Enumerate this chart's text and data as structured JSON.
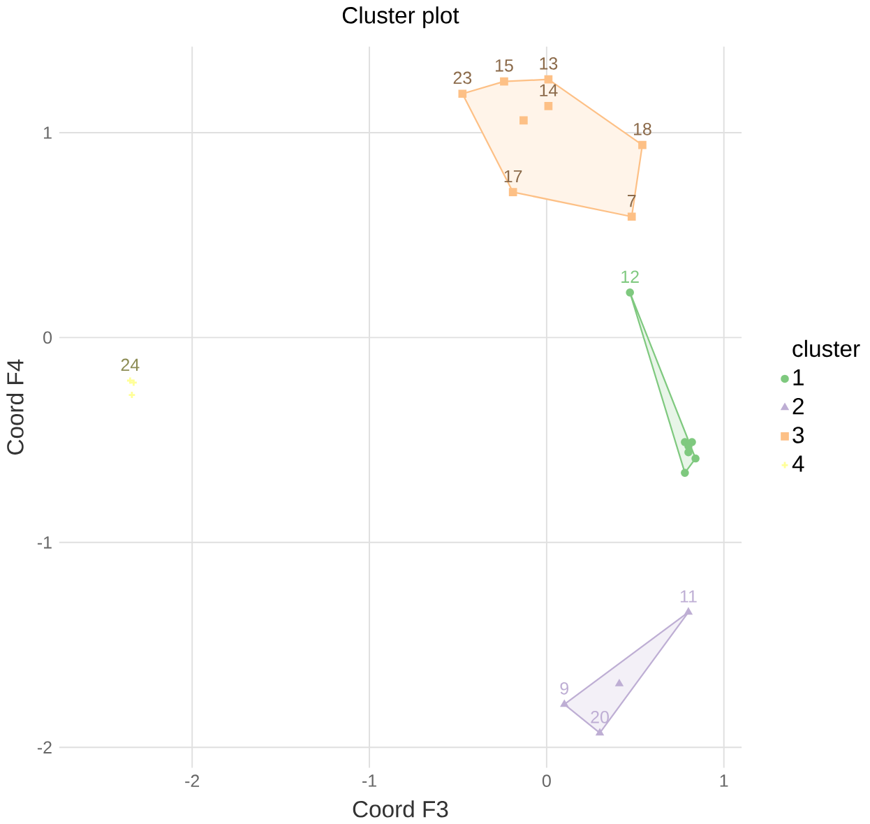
{
  "chart_data": {
    "type": "scatter",
    "title": "Cluster plot",
    "xlabel": "Coord F3",
    "ylabel": "Coord F4",
    "legend_title": "cluster",
    "xlim": [
      -2.75,
      1.1
    ],
    "ylim": [
      -2.1,
      1.42
    ],
    "xticks": [
      -2,
      -1,
      0,
      1
    ],
    "yticks": [
      -2,
      -1,
      0,
      1
    ],
    "grid": true,
    "legend": "right",
    "series": [
      {
        "type": "area",
        "color": "#7fc97f",
        "x": [
          0.47,
          0.84,
          0.78,
          0.47
        ],
        "values": [
          0.22,
          -0.59,
          -0.66,
          0.22
        ]
      },
      {
        "type": "area",
        "color": "#beaed4",
        "x": [
          0.8,
          0.3,
          0.1,
          0.8
        ],
        "values": [
          -1.34,
          -1.93,
          -1.79,
          -1.34
        ]
      },
      {
        "type": "area",
        "color": "#fdc086",
        "x": [
          -0.475,
          -0.24,
          0.01,
          0.54,
          0.48,
          -0.19,
          -0.475
        ],
        "values": [
          1.19,
          1.25,
          1.26,
          0.94,
          0.59,
          0.71,
          1.19
        ]
      },
      {
        "type": "scatter",
        "name": "1",
        "color": "#7fc97f",
        "marker": "circle",
        "x": [
          0.47,
          0.78,
          0.82,
          0.84,
          0.78,
          0.8,
          0.8
        ],
        "values": [
          0.22,
          -0.51,
          -0.51,
          -0.59,
          -0.66,
          -0.56,
          -0.53
        ]
      },
      {
        "type": "scatter",
        "name": "2",
        "color": "#beaed4",
        "marker": "triangle",
        "x": [
          0.8,
          0.1,
          0.3,
          0.41
        ],
        "values": [
          -1.34,
          -1.79,
          -1.93,
          -1.69
        ]
      },
      {
        "type": "scatter",
        "name": "3",
        "color": "#fdc086",
        "marker": "square",
        "x": [
          -0.475,
          -0.24,
          0.01,
          0.01,
          0.54,
          0.48,
          -0.19,
          -0.13
        ],
        "values": [
          1.19,
          1.25,
          1.26,
          1.13,
          0.94,
          0.59,
          0.71,
          1.06
        ]
      },
      {
        "type": "scatter",
        "name": "4",
        "color": "#ffff99",
        "marker": "cross",
        "x": [
          -2.35,
          -2.33,
          -2.34
        ],
        "values": [
          -0.21,
          -0.22,
          -0.28
        ]
      }
    ],
    "annotations": [
      {
        "text": "12",
        "x": 0.47,
        "y": 0.22
      },
      {
        "text": "11",
        "x": 0.8,
        "y": -1.34
      },
      {
        "text": "9",
        "x": 0.1,
        "y": -1.79
      },
      {
        "text": "20",
        "x": 0.3,
        "y": -1.93
      },
      {
        "text": "23",
        "x": -0.475,
        "y": 1.19
      },
      {
        "text": "15",
        "x": -0.24,
        "y": 1.25
      },
      {
        "text": "13",
        "x": 0.01,
        "y": 1.26
      },
      {
        "text": "14",
        "x": 0.01,
        "y": 1.13
      },
      {
        "text": "18",
        "x": 0.54,
        "y": 0.94
      },
      {
        "text": "7",
        "x": 0.48,
        "y": 0.59
      },
      {
        "text": "17",
        "x": -0.19,
        "y": 0.71
      },
      {
        "text": "24",
        "x": -2.35,
        "y": -0.21
      }
    ]
  }
}
